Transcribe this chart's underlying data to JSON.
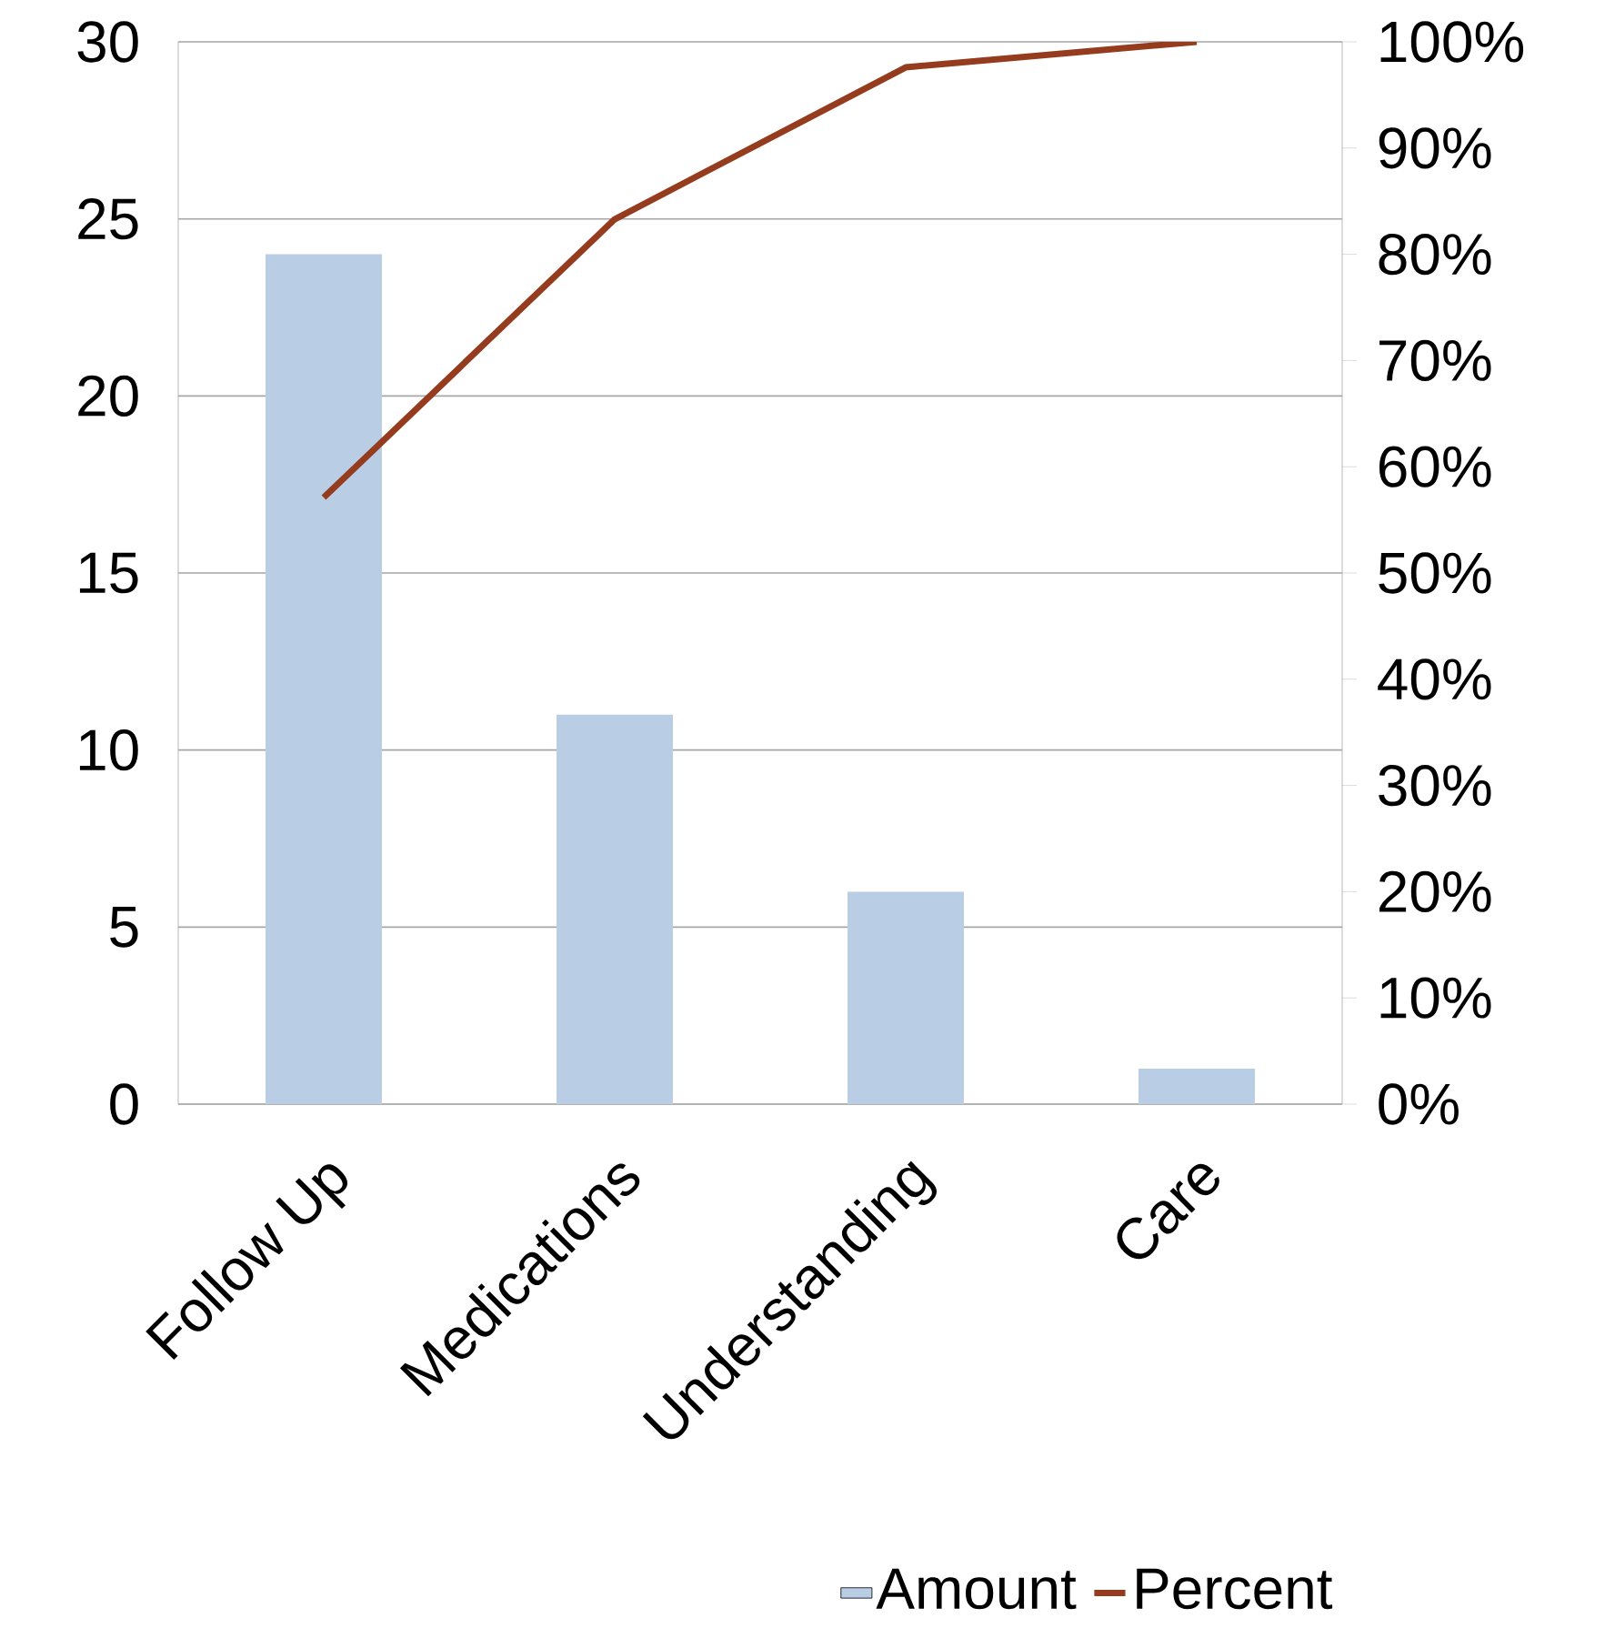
{
  "chart_data": {
    "type": "bar",
    "categories": [
      "Follow Up",
      "Medications",
      "Understanding",
      "Care"
    ],
    "series": [
      {
        "name": "Amount",
        "color": "#b9cde5",
        "values": [
          24,
          11,
          6,
          1
        ]
      },
      {
        "name": "Percent",
        "type": "line",
        "axis": "y2",
        "color": "#963c1e",
        "values": [
          57.1,
          83.3,
          97.6,
          100
        ]
      }
    ],
    "ylim": [
      0,
      30
    ],
    "yticks": [
      0,
      5,
      10,
      15,
      20,
      25,
      30
    ],
    "y2lim": [
      0,
      100
    ],
    "y2ticks": [
      {
        "value": 0,
        "label": "0%"
      },
      {
        "value": 10,
        "label": "10%"
      },
      {
        "value": 20,
        "label": "20%"
      },
      {
        "value": 30,
        "label": "30%"
      },
      {
        "value": 40,
        "label": "40%"
      },
      {
        "value": 50,
        "label": "50%"
      },
      {
        "value": 60,
        "label": "60%"
      },
      {
        "value": 70,
        "label": "70%"
      },
      {
        "value": 80,
        "label": "80%"
      },
      {
        "value": 90,
        "label": "90%"
      },
      {
        "value": 100,
        "label": "100%"
      }
    ],
    "grid": "y",
    "legend": "bottom"
  }
}
